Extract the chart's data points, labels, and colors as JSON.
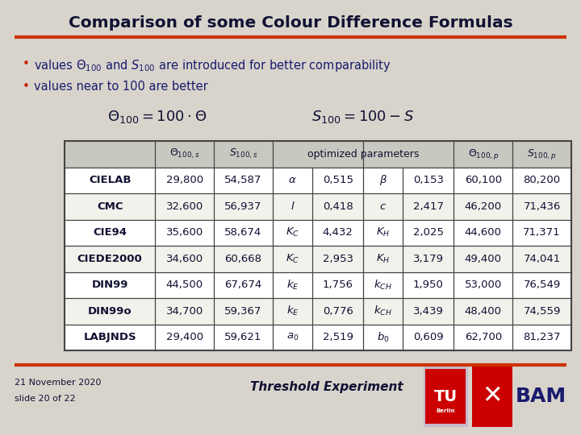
{
  "title": "Comparison of some Colour Difference Formulas",
  "bg_color": "#d8d4cc",
  "title_color": "#1a1a2e",
  "text_color": "#1a1a6e",
  "dark_color": "#111133",
  "bullet_color": "#cc2200",
  "red_line_color": "#cc3300",
  "bullet2": "values near to 100 are better",
  "rows": [
    [
      "CIELAB",
      "29,800",
      "54,587",
      "0,515",
      "0,153",
      "60,100",
      "80,200"
    ],
    [
      "CMC",
      "32,600",
      "56,937",
      "0,418",
      "2,417",
      "46,200",
      "71,436"
    ],
    [
      "CIE94",
      "35,600",
      "58,674",
      "4,432",
      "2,025",
      "44,600",
      "71,371"
    ],
    [
      "CIEDE2000",
      "34,600",
      "60,668",
      "2,953",
      "3,179",
      "49,400",
      "74,041"
    ],
    [
      "DIN99",
      "44,500",
      "67,674",
      "1,756",
      "1,950",
      "53,000",
      "76,549"
    ],
    [
      "DIN99o",
      "34,700",
      "59,367",
      "0,776",
      "3,439",
      "48,400",
      "74,559"
    ],
    [
      "LABJNDS",
      "29,400",
      "59,621",
      "2,519",
      "0,609",
      "62,700",
      "81,237"
    ]
  ],
  "param1": [
    "α",
    "l",
    "K_C",
    "K_C",
    "k_E",
    "k_E",
    "a_0"
  ],
  "param2": [
    "β",
    "c",
    "K_H",
    "K_H",
    "k_{CH}",
    "k_{CH}",
    "b_0"
  ],
  "date_text": "21 November 2020",
  "slide_text": "slide 20 of 22",
  "footer_text": "Threshold Experiment",
  "table_bg": "#ffffff",
  "table_header_bg": "#e0e0d8",
  "table_border": "#444444",
  "row_colors": [
    "#ffffff",
    "#f0f0e8",
    "#ffffff",
    "#f0f0e8",
    "#ffffff",
    "#f0f0e8",
    "#ffffff"
  ]
}
